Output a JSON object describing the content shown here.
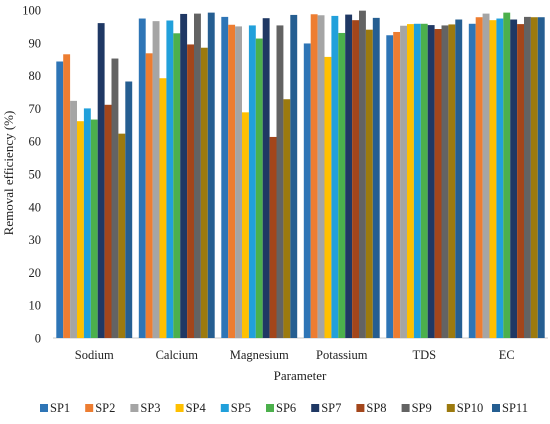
{
  "chart_data": {
    "type": "bar",
    "title": "",
    "xlabel": "Parameter",
    "ylabel": "Removal efficiency (%)",
    "ylim": [
      0,
      100
    ],
    "yticks": [
      0,
      10,
      20,
      30,
      40,
      50,
      60,
      70,
      80,
      90,
      100
    ],
    "grid": false,
    "legend_position": "bottom",
    "categories": [
      "Sodium",
      "Calcium",
      "Magnesium",
      "Potassium",
      "TDS",
      "EC"
    ],
    "series": [
      {
        "name": "SP1",
        "color": "#2e75b6",
        "values": [
          84.3,
          97.4,
          97.9,
          89.8,
          92.3,
          95.8
        ]
      },
      {
        "name": "SP2",
        "color": "#ed7d31",
        "values": [
          86.5,
          86.8,
          95.5,
          98.7,
          93.3,
          97.8
        ]
      },
      {
        "name": "SP3",
        "color": "#a5a5a5",
        "values": [
          72.3,
          96.6,
          95.0,
          98.4,
          95.2,
          98.9
        ]
      },
      {
        "name": "SP4",
        "color": "#ffc000",
        "values": [
          66.1,
          79.2,
          68.8,
          85.7,
          95.7,
          96.9
        ]
      },
      {
        "name": "SP5",
        "color": "#21a0db",
        "values": [
          70.0,
          96.8,
          95.3,
          98.2,
          95.8,
          97.4
        ]
      },
      {
        "name": "SP6",
        "color": "#4cb04c",
        "values": [
          66.6,
          92.9,
          91.3,
          93.0,
          95.8,
          99.2
        ]
      },
      {
        "name": "SP7",
        "color": "#1f3864",
        "values": [
          96.0,
          98.8,
          97.5,
          98.6,
          95.4,
          97.1
        ]
      },
      {
        "name": "SP8",
        "color": "#a3461b",
        "values": [
          71.1,
          89.5,
          61.3,
          96.9,
          94.2,
          95.7
        ]
      },
      {
        "name": "SP9",
        "color": "#636363",
        "values": [
          85.2,
          98.9,
          95.3,
          99.8,
          95.3,
          97.9
        ]
      },
      {
        "name": "SP10",
        "color": "#9c7a0e",
        "values": [
          62.3,
          88.5,
          72.8,
          94.0,
          95.6,
          97.8
        ]
      },
      {
        "name": "SP11",
        "color": "#255e91",
        "values": [
          78.2,
          99.2,
          98.5,
          97.6,
          97.1,
          97.8
        ]
      }
    ]
  }
}
